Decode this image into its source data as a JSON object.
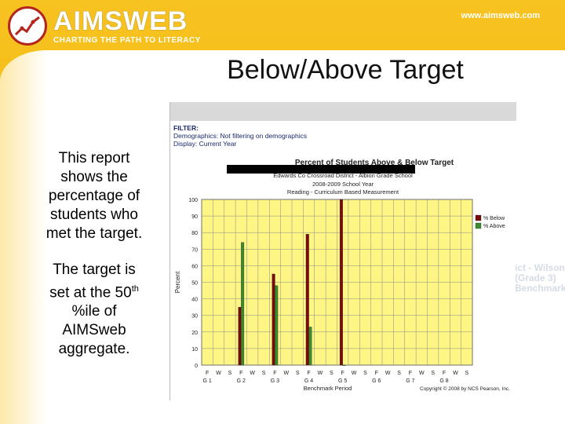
{
  "header": {
    "logo_name": "AIMSWEB",
    "logo_tagline": "CHARTING THE PATH TO LITERACY",
    "url": "www.aimsweb.com"
  },
  "slide": {
    "title": "Below/Above Target",
    "description_1": "This report shows the percentage of students who met the target.",
    "description_2_a": "The target is set at the 50",
    "description_2_sup": "th",
    "description_2_b": " %ile of AIMSweb aggregate."
  },
  "report": {
    "filter_label": "FILTER:",
    "demographics_label": "Demographics:",
    "demographics_value": "Not filtering on demographics",
    "display_label": "Display:",
    "display_value": "Current Year",
    "chart_title": "Percent of Students Above & Below Target",
    "district_line": "Edwards Co Crossroad District - Albion Grade School",
    "year_line": "2008-2009 School Year",
    "measure_line": "Reading - Curriculum Based Measurement",
    "copyright": "Copyright © 2008 by NCS Pearson, Inc."
  },
  "colors": {
    "below": "#7a0a0a",
    "above": "#3a8c2e",
    "plot_bg": "#fdf584"
  },
  "chart_data": {
    "type": "bar",
    "ylabel": "Percent",
    "xlabel": "Benchmark Period",
    "ylim": [
      0,
      100
    ],
    "yticks": [
      0,
      10,
      20,
      30,
      40,
      50,
      60,
      70,
      80,
      90,
      100
    ],
    "grades": [
      "G 1",
      "G 2",
      "G 3",
      "G 4",
      "G 5",
      "G 6",
      "G 7",
      "G 8"
    ],
    "periods": [
      "F",
      "W",
      "S"
    ],
    "series": [
      {
        "name": "% Below",
        "values": [
          null,
          null,
          null,
          35,
          null,
          null,
          55,
          null,
          null,
          79,
          null,
          null,
          100,
          null,
          null,
          null,
          null,
          null,
          null,
          null,
          null,
          null,
          null,
          null
        ]
      },
      {
        "name": "% Above",
        "values": [
          null,
          null,
          null,
          74,
          null,
          null,
          48,
          null,
          null,
          23,
          null,
          null,
          0,
          null,
          null,
          null,
          null,
          null,
          null,
          null,
          null,
          null,
          null,
          null
        ]
      }
    ],
    "legend_position": "right"
  }
}
